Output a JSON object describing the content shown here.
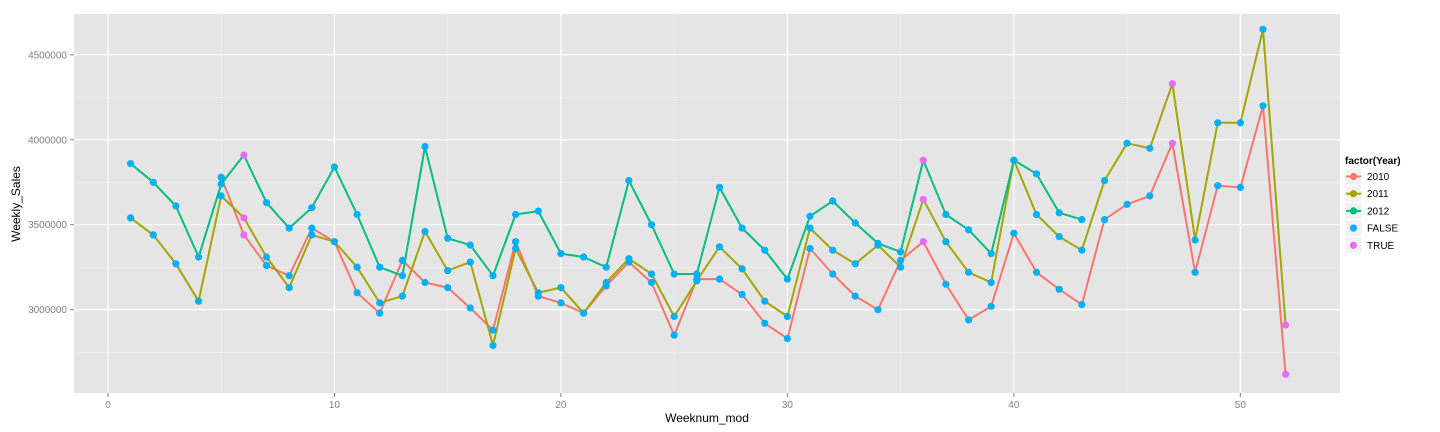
{
  "chart_data": {
    "type": "line",
    "xlabel": "Weeknum_mod",
    "ylabel": "Weekly_Sales",
    "xlim": [
      -1.5,
      54.4
    ],
    "ylim": [
      2510000,
      4740000
    ],
    "x_ticks": [
      0,
      10,
      20,
      30,
      40,
      50
    ],
    "x_tick_labels": [
      "0",
      "10",
      "20",
      "30",
      "40",
      "50"
    ],
    "y_ticks": [
      3000000,
      3500000,
      4000000,
      4500000
    ],
    "y_tick_labels": [
      "3000000",
      "3500000",
      "4000000",
      "4500000"
    ],
    "grid": true,
    "legend": {
      "title": "factor(Year)",
      "position": "right",
      "entries": [
        {
          "label": "2010",
          "color": "#F8766D",
          "kind": "line-point"
        },
        {
          "label": "2011",
          "color": "#A3A500",
          "kind": "line-point"
        },
        {
          "label": "2012",
          "color": "#00BF7D",
          "kind": "line-point"
        },
        {
          "label": "FALSE",
          "color": "#00B0F6",
          "kind": "point"
        },
        {
          "label": "TRUE",
          "color": "#E76BF3",
          "kind": "point"
        }
      ]
    },
    "series": [
      {
        "name": "2010",
        "color": "#F8766D",
        "x": [
          5,
          6,
          7,
          8,
          9,
          10,
          11,
          12,
          13,
          14,
          15,
          16,
          17,
          18,
          19,
          20,
          21,
          22,
          23,
          24,
          25,
          26,
          27,
          28,
          29,
          30,
          31,
          32,
          33,
          34,
          35,
          36,
          37,
          38,
          39,
          40,
          41,
          42,
          43,
          44,
          45,
          46,
          47,
          48,
          49,
          50,
          51,
          52
        ],
        "y": [
          3780000,
          3440000,
          3260000,
          3200000,
          3480000,
          3400000,
          3100000,
          2980000,
          3290000,
          3160000,
          3130000,
          3010000,
          2880000,
          3400000,
          3080000,
          3040000,
          2980000,
          3140000,
          3280000,
          3160000,
          2850000,
          3180000,
          3180000,
          3090000,
          2920000,
          2830000,
          3360000,
          3210000,
          3080000,
          3000000,
          3290000,
          3400000,
          3150000,
          2940000,
          3020000,
          3450000,
          3220000,
          3120000,
          3030000,
          3530000,
          3620000,
          3670000,
          3980000,
          3220000,
          3730000,
          3720000,
          4200000,
          2620000
        ],
        "holiday": [
          false,
          true,
          false,
          false,
          false,
          false,
          false,
          false,
          false,
          false,
          false,
          false,
          false,
          false,
          false,
          false,
          false,
          false,
          false,
          false,
          false,
          false,
          false,
          false,
          false,
          false,
          false,
          false,
          false,
          false,
          false,
          true,
          false,
          false,
          false,
          false,
          false,
          false,
          false,
          false,
          false,
          false,
          true,
          false,
          false,
          false,
          false,
          true
        ]
      },
      {
        "name": "2011",
        "color": "#A3A500",
        "x": [
          1,
          2,
          3,
          4,
          5,
          6,
          7,
          8,
          9,
          10,
          11,
          12,
          13,
          14,
          15,
          16,
          17,
          18,
          19,
          20,
          21,
          22,
          23,
          24,
          25,
          26,
          27,
          28,
          29,
          30,
          31,
          32,
          33,
          34,
          35,
          36,
          37,
          38,
          39,
          40,
          41,
          42,
          43,
          44,
          45,
          46,
          47,
          48,
          49,
          50,
          51,
          52
        ],
        "y": [
          3540000,
          3440000,
          3270000,
          3050000,
          3670000,
          3540000,
          3310000,
          3130000,
          3440000,
          3400000,
          3250000,
          3040000,
          3080000,
          3460000,
          3230000,
          3280000,
          2790000,
          3360000,
          3100000,
          3130000,
          2980000,
          3160000,
          3300000,
          3210000,
          2960000,
          3170000,
          3370000,
          3240000,
          3050000,
          2960000,
          3480000,
          3350000,
          3270000,
          3380000,
          3250000,
          3650000,
          3400000,
          3220000,
          3160000,
          3880000,
          3560000,
          3430000,
          3350000,
          3760000,
          3980000,
          3950000,
          4330000,
          3410000,
          4100000,
          4100000,
          4650000,
          2910000
        ],
        "holiday": [
          false,
          false,
          false,
          false,
          false,
          true,
          false,
          false,
          false,
          false,
          false,
          false,
          false,
          false,
          false,
          false,
          false,
          false,
          false,
          false,
          false,
          false,
          false,
          false,
          false,
          false,
          false,
          false,
          false,
          false,
          false,
          false,
          false,
          false,
          false,
          true,
          false,
          false,
          false,
          false,
          false,
          false,
          false,
          false,
          false,
          false,
          true,
          false,
          false,
          false,
          false,
          true
        ]
      },
      {
        "name": "2012",
        "color": "#00BF7D",
        "x": [
          1,
          2,
          3,
          4,
          5,
          6,
          7,
          8,
          9,
          10,
          11,
          12,
          13,
          14,
          15,
          16,
          17,
          18,
          19,
          20,
          21,
          22,
          23,
          24,
          25,
          26,
          27,
          28,
          29,
          30,
          31,
          32,
          33,
          34,
          35,
          36,
          37,
          38,
          39,
          40,
          41,
          42,
          43
        ],
        "y": [
          3860000,
          3750000,
          3610000,
          3310000,
          3740000,
          3910000,
          3630000,
          3480000,
          3600000,
          3840000,
          3560000,
          3250000,
          3200000,
          3960000,
          3420000,
          3380000,
          3200000,
          3560000,
          3580000,
          3330000,
          3310000,
          3250000,
          3760000,
          3500000,
          3210000,
          3210000,
          3720000,
          3480000,
          3350000,
          3180000,
          3550000,
          3640000,
          3510000,
          3390000,
          3340000,
          3880000,
          3560000,
          3470000,
          3330000,
          3880000,
          3800000,
          3570000,
          3530000
        ],
        "holiday": [
          false,
          false,
          false,
          false,
          false,
          true,
          false,
          false,
          false,
          false,
          false,
          false,
          false,
          false,
          false,
          false,
          false,
          false,
          false,
          false,
          false,
          false,
          false,
          false,
          false,
          false,
          false,
          false,
          false,
          false,
          false,
          false,
          false,
          false,
          false,
          true,
          false,
          false,
          false,
          false,
          false,
          false,
          false
        ]
      }
    ]
  }
}
